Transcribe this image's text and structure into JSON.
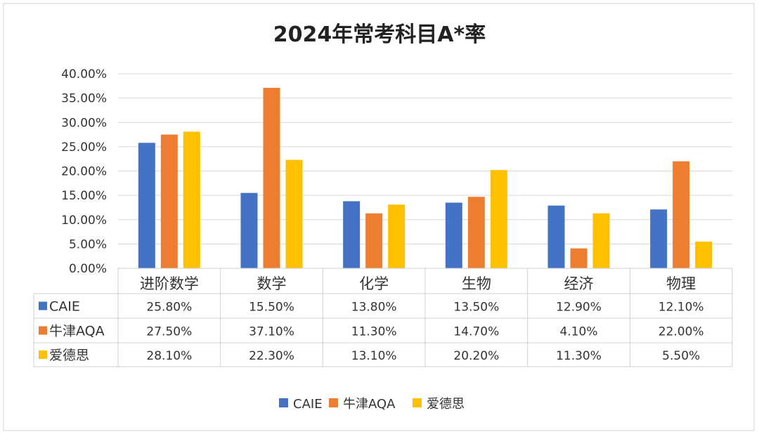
{
  "chart_data": {
    "type": "bar",
    "title": "2024年常考科目A*率",
    "categories": [
      "进阶数学",
      "数学",
      "化学",
      "生物",
      "经济",
      "物理"
    ],
    "series": [
      {
        "name": "CAIE",
        "color": "#4472C4",
        "values": [
          25.8,
          15.5,
          13.8,
          13.5,
          12.9,
          12.1
        ],
        "labels": [
          "25.80%",
          "15.50%",
          "13.80%",
          "13.50%",
          "12.90%",
          "12.10%"
        ]
      },
      {
        "name": "牛津AQA",
        "color": "#ED7D31",
        "values": [
          27.5,
          37.1,
          11.3,
          14.7,
          4.1,
          22.0
        ],
        "labels": [
          "27.50%",
          "37.10%",
          "11.30%",
          "14.70%",
          "4.10%",
          "22.00%"
        ]
      },
      {
        "name": "爱德思",
        "color": "#FFC000",
        "values": [
          28.1,
          22.3,
          13.1,
          20.2,
          11.3,
          5.5
        ],
        "labels": [
          "28.10%",
          "22.30%",
          "13.10%",
          "20.20%",
          "11.30%",
          "5.50%"
        ]
      }
    ],
    "ylim": [
      0,
      40
    ],
    "yticks": [
      "0.00%",
      "5.00%",
      "10.00%",
      "15.00%",
      "20.00%",
      "25.00%",
      "30.00%",
      "35.00%",
      "40.00%"
    ],
    "ytick_values": [
      0,
      5,
      10,
      15,
      20,
      25,
      30,
      35,
      40
    ],
    "grid": true,
    "legend": "bottom",
    "data_table": true
  }
}
